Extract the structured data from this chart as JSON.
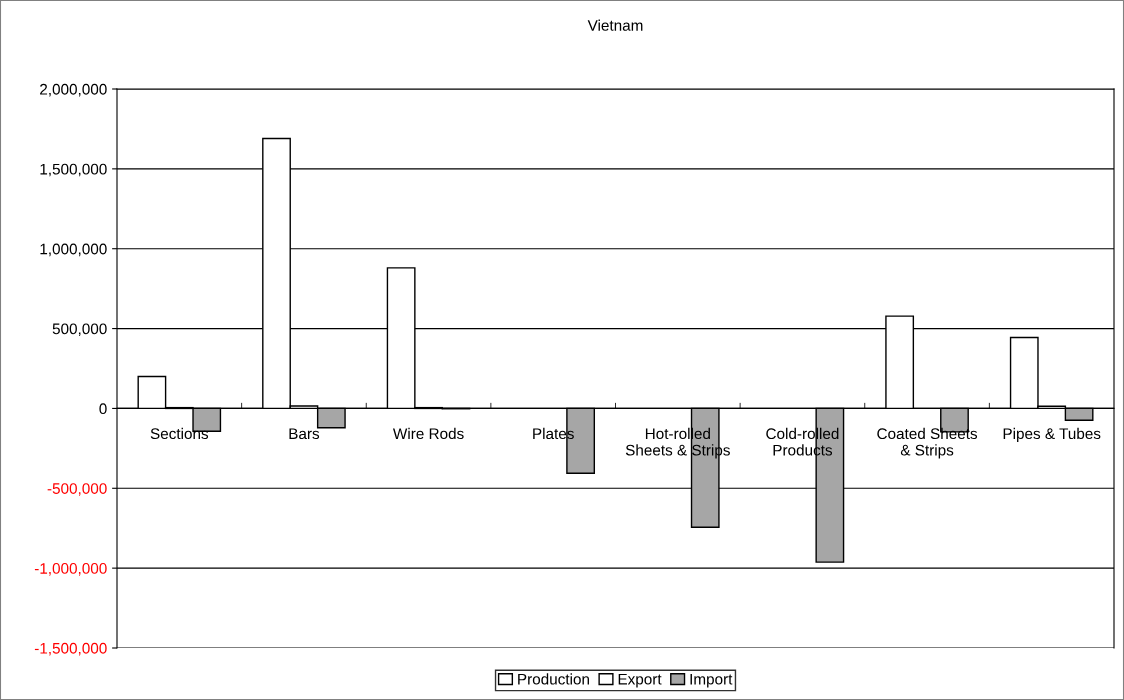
{
  "chart_data": {
    "type": "bar",
    "title": "Vietnam",
    "categories": [
      "Sections",
      "Bars",
      "Wire Rods",
      "Plates",
      "Hot-rolled\nSheets & Strips",
      "Cold-rolled\nProducts",
      "Coated Sheets\n& Strips",
      "Pipes & Tubes"
    ],
    "series": [
      {
        "name": "Production",
        "color": "#ffffff",
        "values": [
          200000,
          1690000,
          880000,
          null,
          null,
          null,
          578000,
          444000
        ]
      },
      {
        "name": "Export",
        "color": "#ffffff",
        "values": [
          5000,
          15000,
          5000,
          null,
          null,
          null,
          null,
          14000
        ]
      },
      {
        "name": "Import",
        "color": "#a6a6a6",
        "values": [
          -143000,
          -121000,
          -2000,
          -406000,
          -744000,
          -962000,
          -147000,
          -74000
        ]
      }
    ],
    "ylim": [
      -1500000,
      2000000
    ],
    "yticks": [
      {
        "value": -1500000,
        "label": "-1,500,000"
      },
      {
        "value": -1000000,
        "label": "-1,000,000"
      },
      {
        "value": -500000,
        "label": "-500,000"
      },
      0,
      {
        "value": 500000,
        "label": "500,000"
      },
      {
        "value": 1000000,
        "label": "1,000,000"
      },
      {
        "value": 1500000,
        "label": "1,500,000"
      },
      {
        "value": 2000000,
        "label": "2,000,000"
      }
    ],
    "grid": "y",
    "legend": "bottom"
  }
}
